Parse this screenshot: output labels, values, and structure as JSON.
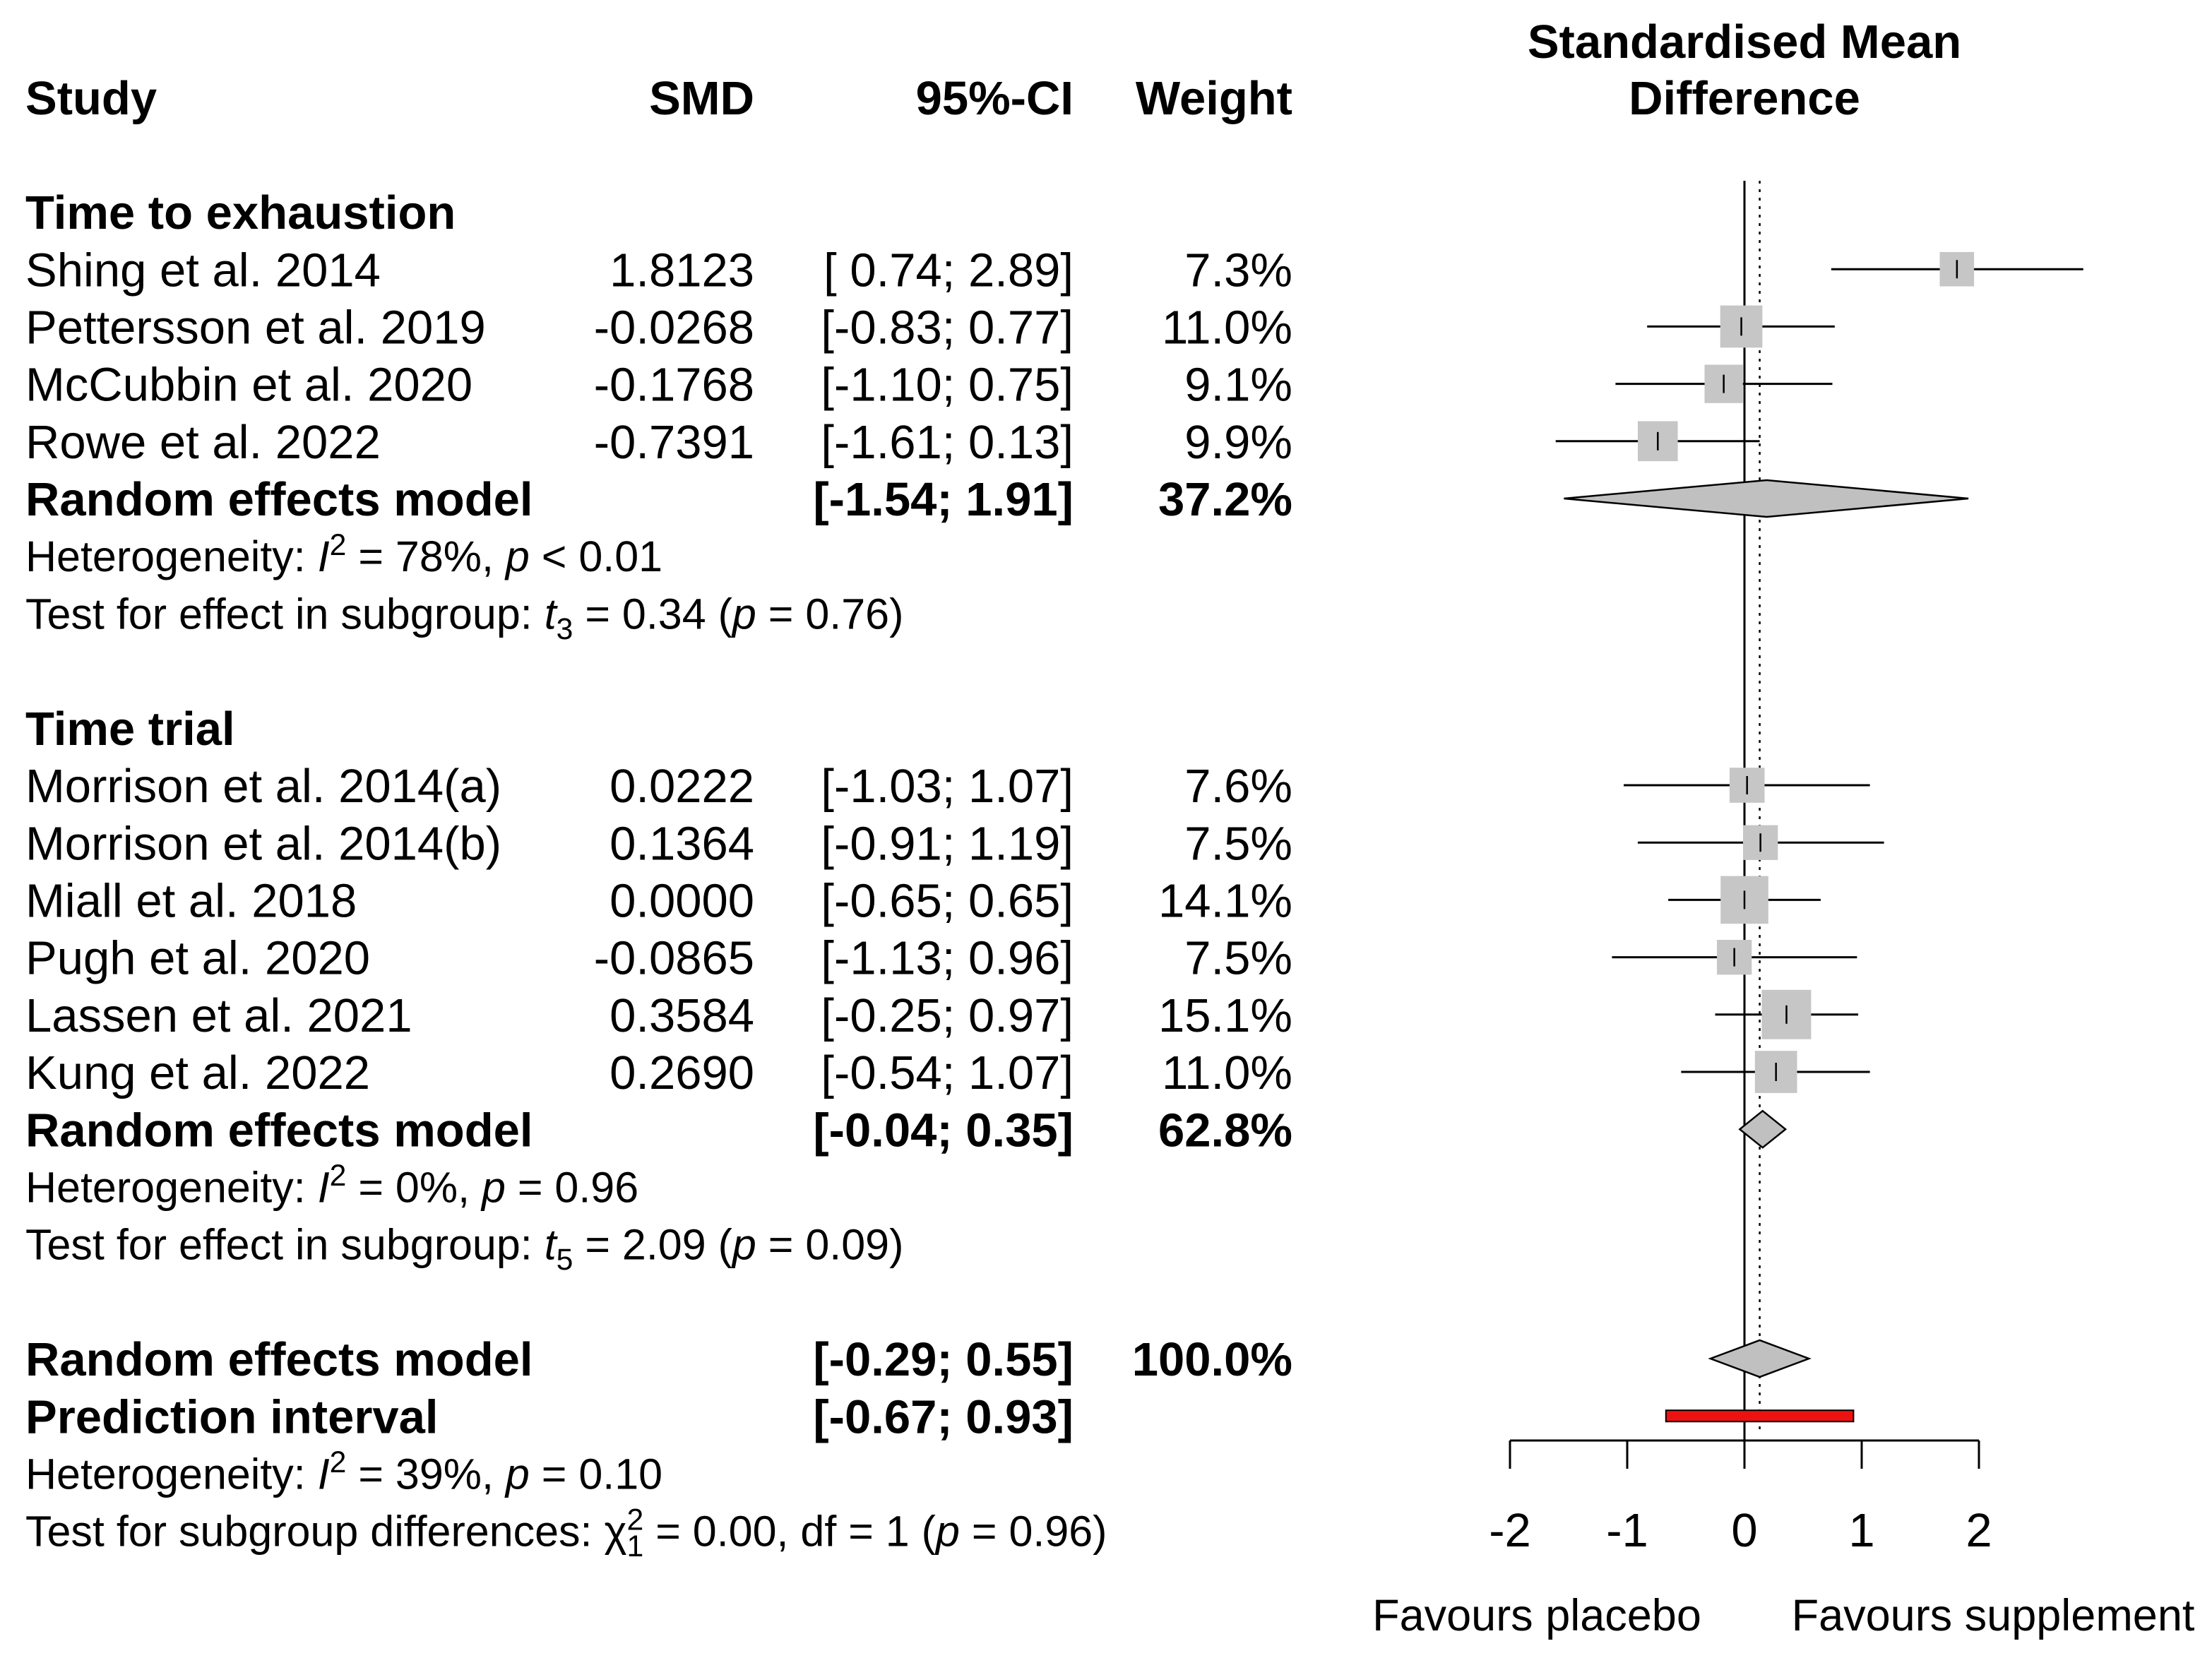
{
  "chart_data": {
    "type": "scatter",
    "columns": {
      "study": "Study",
      "smd": "SMD",
      "ci": "95%-CI",
      "weight": "Weight"
    },
    "title_lines": [
      "Standardised Mean",
      "Difference"
    ],
    "x_axis": {
      "range": [
        -2,
        2
      ],
      "ticks": [
        -2,
        -1,
        0,
        1,
        2
      ],
      "tick_labels": [
        "-2",
        "-1",
        "0",
        "1",
        "2"
      ]
    },
    "xlabel_left": "Favours placebo",
    "xlabel_right": "Favours supplement",
    "reference_line": 0,
    "overall_estimate_line": 0.13,
    "colors": {
      "square": "#c6c6c6",
      "diamond": "#c0c0c0",
      "prediction_interval": "#ee1111",
      "line": "#000000"
    },
    "subgroups": [
      {
        "name": "Time to exhaustion",
        "studies": [
          {
            "study": "Shing et al. 2014",
            "smd": 1.8123,
            "smd_text": "1.8123",
            "lower": 0.74,
            "upper": 2.89,
            "ci_text": "[ 0.74; 2.89]",
            "weight": 7.3,
            "weight_text": "7.3%"
          },
          {
            "study": "Pettersson et al. 2019",
            "smd": -0.0268,
            "smd_text": "-0.0268",
            "lower": -0.83,
            "upper": 0.77,
            "ci_text": "[-0.83; 0.77]",
            "weight": 11.0,
            "weight_text": "11.0%"
          },
          {
            "study": "McCubbin et al. 2020",
            "smd": -0.1768,
            "smd_text": "-0.1768",
            "lower": -1.1,
            "upper": 0.75,
            "ci_text": "[-1.10; 0.75]",
            "weight": 9.1,
            "weight_text": "9.1%"
          },
          {
            "study": "Rowe et al. 2022",
            "smd": -0.7391,
            "smd_text": "-0.7391",
            "lower": -1.61,
            "upper": 0.13,
            "ci_text": "[-1.61; 0.13]",
            "weight": 9.9,
            "weight_text": "9.9%"
          }
        ],
        "model": {
          "label": "Random effects model",
          "estimate": 0.19,
          "lower": -1.54,
          "upper": 1.91,
          "ci_text": "[-1.54; 1.91]",
          "weight_text": "37.2%"
        },
        "heterogeneity": [
          {
            "t": "Heterogeneity: "
          },
          {
            "t": "I",
            "italic": true
          },
          {
            "t": "2",
            "sup": true
          },
          {
            "t": " = 78%, "
          },
          {
            "t": "p",
            "italic": true
          },
          {
            "t": " < 0.01"
          }
        ],
        "effect_test": [
          {
            "t": "Test for effect in subgroup: "
          },
          {
            "t": "t",
            "italic": true
          },
          {
            "t": "3",
            "sub": true
          },
          {
            "t": " = 0.34 ("
          },
          {
            "t": "p",
            "italic": true
          },
          {
            "t": " = 0.76)"
          }
        ]
      },
      {
        "name": "Time trial",
        "studies": [
          {
            "study": "Morrison et al. 2014(a)",
            "smd": 0.0222,
            "smd_text": "0.0222",
            "lower": -1.03,
            "upper": 1.07,
            "ci_text": "[-1.03; 1.07]",
            "weight": 7.6,
            "weight_text": "7.6%"
          },
          {
            "study": "Morrison et al. 2014(b)",
            "smd": 0.1364,
            "smd_text": "0.1364",
            "lower": -0.91,
            "upper": 1.19,
            "ci_text": "[-0.91; 1.19]",
            "weight": 7.5,
            "weight_text": "7.5%"
          },
          {
            "study": "Miall et al. 2018",
            "smd": 0.0,
            "smd_text": "0.0000",
            "lower": -0.65,
            "upper": 0.65,
            "ci_text": "[-0.65; 0.65]",
            "weight": 14.1,
            "weight_text": "14.1%"
          },
          {
            "study": "Pugh et al. 2020",
            "smd": -0.0865,
            "smd_text": "-0.0865",
            "lower": -1.13,
            "upper": 0.96,
            "ci_text": "[-1.13; 0.96]",
            "weight": 7.5,
            "weight_text": "7.5%"
          },
          {
            "study": "Lassen et al. 2021",
            "smd": 0.3584,
            "smd_text": "0.3584",
            "lower": -0.25,
            "upper": 0.97,
            "ci_text": "[-0.25; 0.97]",
            "weight": 15.1,
            "weight_text": "15.1%"
          },
          {
            "study": "Kung et al. 2022",
            "smd": 0.269,
            "smd_text": "0.2690",
            "lower": -0.54,
            "upper": 1.07,
            "ci_text": "[-0.54; 1.07]",
            "weight": 11.0,
            "weight_text": "11.0%"
          }
        ],
        "model": {
          "label": "Random effects model",
          "estimate": 0.155,
          "lower": -0.04,
          "upper": 0.35,
          "ci_text": "[-0.04; 0.35]",
          "weight_text": "62.8%"
        },
        "heterogeneity": [
          {
            "t": "Heterogeneity: "
          },
          {
            "t": "I",
            "italic": true
          },
          {
            "t": "2",
            "sup": true
          },
          {
            "t": " = 0%, "
          },
          {
            "t": "p",
            "italic": true
          },
          {
            "t": " = 0.96"
          }
        ],
        "effect_test": [
          {
            "t": "Test for effect in subgroup: "
          },
          {
            "t": "t",
            "italic": true
          },
          {
            "t": "5",
            "sub": true
          },
          {
            "t": " = 2.09 ("
          },
          {
            "t": "p",
            "italic": true
          },
          {
            "t": " = 0.09)"
          }
        ]
      }
    ],
    "overall": {
      "model": {
        "label": "Random effects model",
        "estimate": 0.13,
        "lower": -0.29,
        "upper": 0.55,
        "ci_text": "[-0.29; 0.55]",
        "weight_text": "100.0%"
      },
      "prediction": {
        "label": "Prediction interval",
        "lower": -0.67,
        "upper": 0.93,
        "ci_text": "[-0.67; 0.93]"
      },
      "heterogeneity": [
        {
          "t": "Heterogeneity: "
        },
        {
          "t": "I",
          "italic": true
        },
        {
          "t": "2",
          "sup": true
        },
        {
          "t": " = 39%, "
        },
        {
          "t": "p",
          "italic": true
        },
        {
          "t": " = 0.10"
        }
      ],
      "subgroup_test": [
        {
          "t": "Test for subgroup differences: "
        },
        {
          "t": "χ"
        },
        {
          "t": "2",
          "sup": true
        },
        {
          "t": "1",
          "sub": true,
          "stack": true
        },
        {
          "t": " = 0.00, df = 1 ("
        },
        {
          "t": "p",
          "italic": true
        },
        {
          "t": " = 0.96)"
        }
      ]
    }
  }
}
